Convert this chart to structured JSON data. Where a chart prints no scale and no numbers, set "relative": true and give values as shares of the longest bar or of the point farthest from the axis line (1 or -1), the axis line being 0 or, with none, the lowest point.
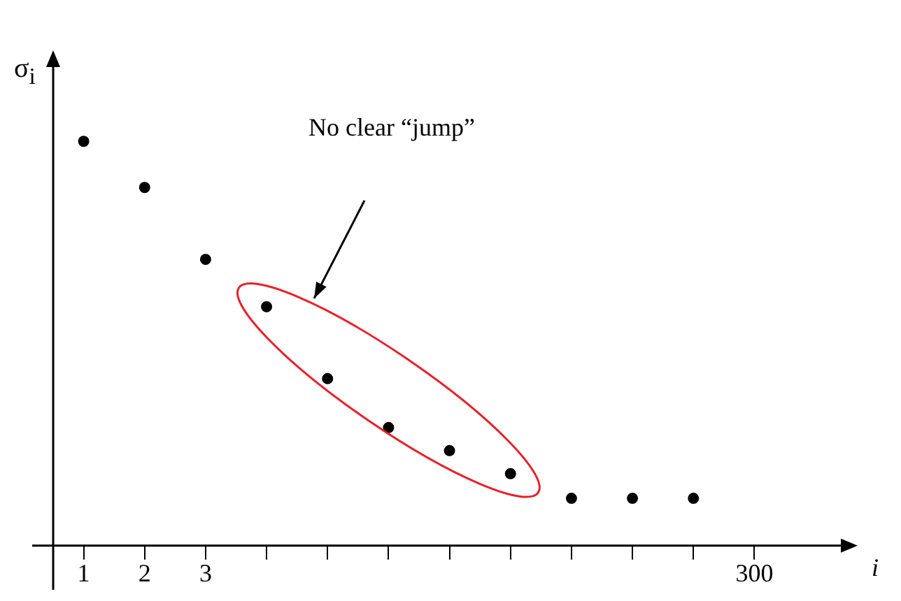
{
  "chart_data": {
    "type": "scatter",
    "xlabel": "i",
    "ylabel": "σ$_{i}$",
    "relative": true,
    "marker": "circle",
    "categories": [
      "1",
      "2",
      "3",
      null,
      null,
      null,
      null,
      null,
      null,
      null,
      null,
      "300"
    ],
    "series": [
      {
        "color": "#000000",
        "values": [
          1,
          0.886,
          0.708,
          0.591,
          0.413,
          0.292,
          0.235,
          0.178,
          0.117,
          0.117,
          0.117,
          null
        ]
      }
    ],
    "annotations": [
      "No clear “jump”"
    ]
  }
}
